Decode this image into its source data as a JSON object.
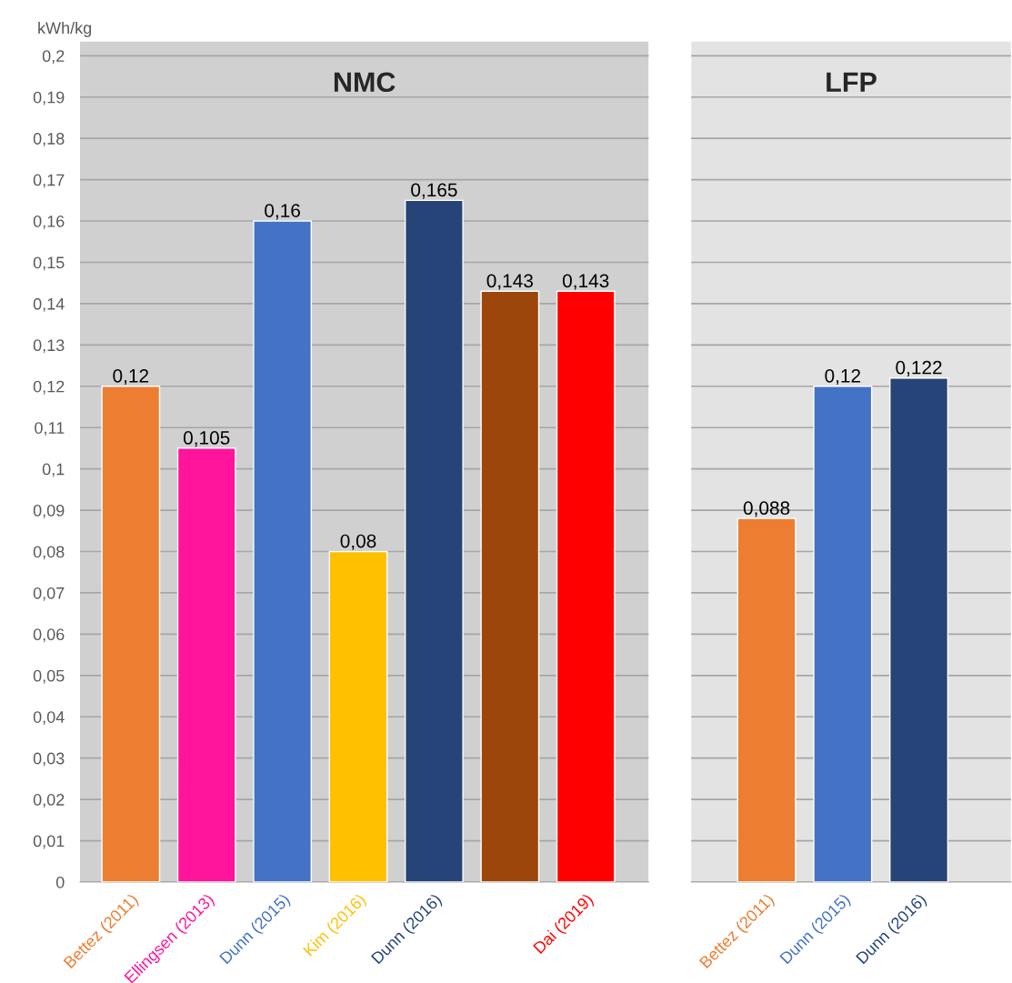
{
  "chart_data": [
    {
      "type": "bar",
      "title": "NMC",
      "ylabel": "kWh/kg",
      "categories": [
        "Bettez (2011)",
        "Ellingsen (2013)",
        "Dunn (2015)",
        "Kim (2016)",
        "Dunn (2016)",
        null,
        "Dai (2019)"
      ],
      "values": [
        0.12,
        0.105,
        0.16,
        0.08,
        0.165,
        0.143,
        0.143
      ],
      "colors": [
        "#ed7d31",
        "#ff149b",
        "#4472c4",
        "#ffc000",
        "#264478",
        "#9c460b",
        "#ff0000"
      ],
      "value_labels": [
        "0,12",
        "0,105",
        "0,16",
        "0,08",
        "0,165",
        "0,143",
        "0,143"
      ],
      "ylim": [
        0,
        0.2035
      ],
      "yticks": [
        0,
        {
          "value": 0.01,
          "label": "0,01"
        },
        {
          "value": 0.02,
          "label": "0,02"
        },
        {
          "value": 0.03,
          "label": "0,03"
        },
        {
          "value": 0.04,
          "label": "0,04"
        },
        {
          "value": 0.05,
          "label": "0,05"
        },
        {
          "value": 0.06,
          "label": "0,06"
        },
        {
          "value": 0.07,
          "label": "0,07"
        },
        {
          "value": 0.08,
          "label": "0,08"
        },
        {
          "value": 0.09,
          "label": "0,09"
        },
        {
          "value": 0.1,
          "label": "0,1"
        },
        {
          "value": 0.11,
          "label": "0,11"
        },
        {
          "value": 0.12,
          "label": "0,12"
        },
        {
          "value": 0.13,
          "label": "0,13"
        },
        {
          "value": 0.14,
          "label": "0,14"
        },
        {
          "value": 0.15,
          "label": "0,15"
        },
        {
          "value": 0.16,
          "label": "0,16"
        },
        {
          "value": 0.17,
          "label": "0,17"
        },
        {
          "value": 0.18,
          "label": "0,18"
        },
        {
          "value": 0.19,
          "label": "0,19"
        },
        {
          "value": 0.2,
          "label": "0,2"
        }
      ],
      "bands": [
        {
          "axis": "y",
          "from": 0,
          "to": 0.2035,
          "color": "#d0d0d0"
        }
      ],
      "grid": "y"
    },
    {
      "type": "bar",
      "title": "LFP",
      "categories": [
        "Bettez (2011)",
        "Dunn (2015)",
        "Dunn (2016)"
      ],
      "values": [
        0.088,
        0.12,
        0.122
      ],
      "colors": [
        "#ed7d31",
        "#4472c4",
        "#264478"
      ],
      "value_labels": [
        "0,088",
        "0,12",
        "0,122"
      ],
      "ylim": [
        0,
        0.2035
      ],
      "bands": [
        {
          "axis": "y",
          "from": 0,
          "to": 0.2035,
          "color": "#e3e3e3"
        }
      ],
      "grid": "y",
      "tick_labels": "x"
    }
  ]
}
